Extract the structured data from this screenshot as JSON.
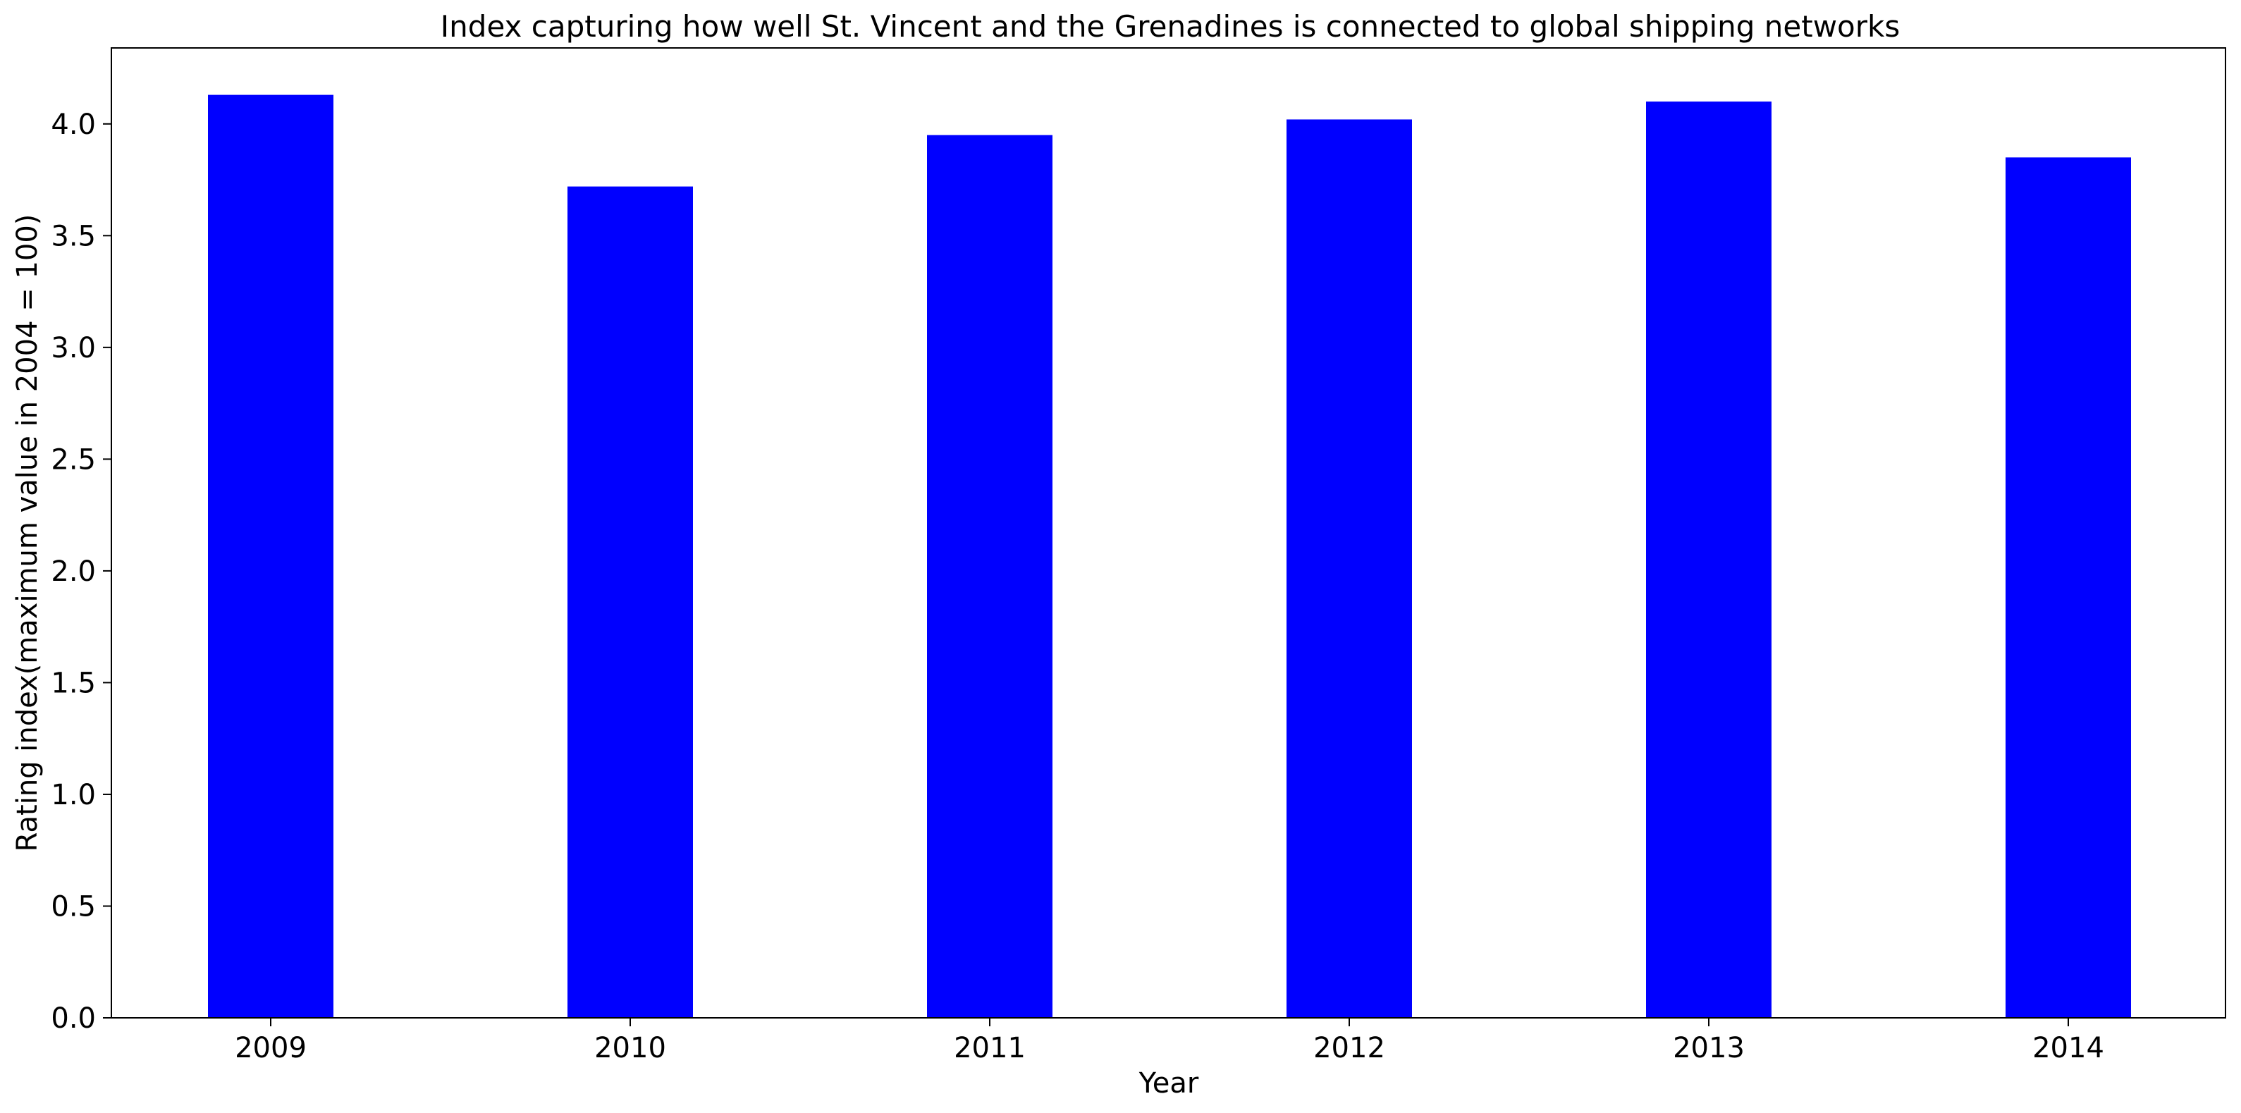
{
  "chart_data": {
    "type": "bar",
    "title": "Index capturing how well St. Vincent and the Grenadines is connected to global shipping networks",
    "xlabel": "Year",
    "ylabel": "Rating index(maximum value in 2004 = 100)",
    "categories": [
      "2009",
      "2010",
      "2011",
      "2012",
      "2013",
      "2014"
    ],
    "values": [
      4.13,
      3.72,
      3.95,
      4.02,
      4.1,
      3.85
    ],
    "ylim": [
      0,
      4.34
    ],
    "yticks": [
      0.0,
      0.5,
      1.0,
      1.5,
      2.0,
      2.5,
      3.0,
      3.5,
      4.0
    ],
    "ytick_labels": [
      "0.0",
      "0.5",
      "1.0",
      "1.5",
      "2.0",
      "2.5",
      "3.0",
      "3.5",
      "4.0"
    ],
    "bar_color": "#0000ff",
    "grid": false,
    "legend": "none"
  }
}
